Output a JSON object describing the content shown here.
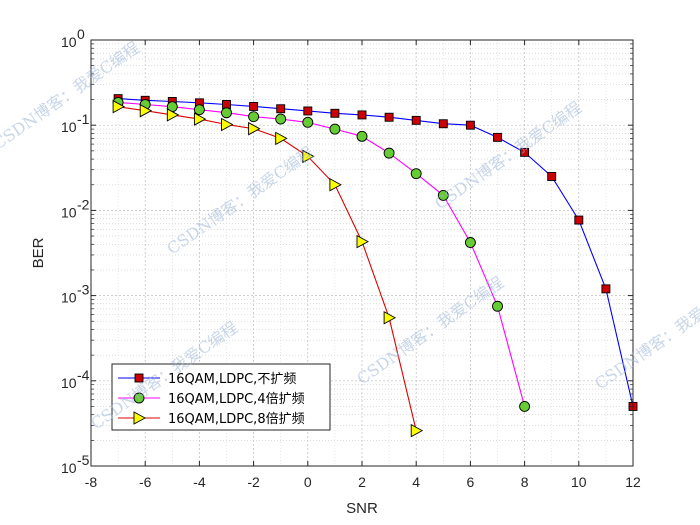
{
  "chart_data": {
    "type": "line",
    "xlabel": "SNR",
    "ylabel": "BER",
    "xlim": [
      -8,
      12
    ],
    "ylim": [
      1e-05,
      1
    ],
    "yscale": "log",
    "grid": true,
    "minor_grid": true,
    "legend_position": "bottom-left",
    "x_ticks": [
      "-8",
      "-6",
      "-4",
      "-2",
      "0",
      "2",
      "4",
      "6",
      "8",
      "10",
      "12"
    ],
    "y_ticks": [
      {
        "base": "10",
        "exp": "0"
      },
      {
        "base": "10",
        "exp": "-1"
      },
      {
        "base": "10",
        "exp": "-2"
      },
      {
        "base": "10",
        "exp": "-3"
      },
      {
        "base": "10",
        "exp": "-4"
      },
      {
        "base": "10",
        "exp": "-5"
      }
    ],
    "series": [
      {
        "name": "16QAM,LDPC,不扩频",
        "marker": "square",
        "line_color": "#0000ff",
        "marker_face": "#cc0000",
        "marker_edge": "#000000",
        "x": [
          -7,
          -6,
          -5,
          -4,
          -3,
          -2,
          -1,
          0,
          1,
          2,
          3,
          4,
          5,
          6,
          7,
          8,
          9,
          10,
          11,
          12
        ],
        "y": [
          0.205,
          0.196,
          0.19,
          0.183,
          0.175,
          0.166,
          0.156,
          0.147,
          0.138,
          0.132,
          0.124,
          0.114,
          0.104,
          0.1,
          0.072,
          0.048,
          0.025,
          0.0077,
          0.0012,
          5e-05
        ]
      },
      {
        "name": "16QAM,LDPC,4倍扩频",
        "marker": "circle",
        "line_color": "#ff00ff",
        "marker_face": "#66cc33",
        "marker_edge": "#000000",
        "x": [
          -7,
          -6,
          -5,
          -4,
          -3,
          -2,
          -1,
          0,
          1,
          2,
          3,
          4,
          5,
          6,
          7,
          8
        ],
        "y": [
          0.185,
          0.175,
          0.165,
          0.152,
          0.14,
          0.126,
          0.118,
          0.108,
          0.09,
          0.074,
          0.047,
          0.027,
          0.015,
          0.0042,
          0.00075,
          5e-05
        ]
      },
      {
        "name": "16QAM,LDPC,8倍扩频",
        "marker": "triangle-right",
        "line_color": "#dd0000",
        "marker_face": "#ffff00",
        "marker_edge": "#000000",
        "x": [
          -7,
          -6,
          -5,
          -4,
          -3,
          -2,
          -1,
          0,
          1,
          2,
          3,
          4
        ],
        "y": [
          0.165,
          0.148,
          0.132,
          0.118,
          0.102,
          0.091,
          0.07,
          0.043,
          0.02,
          0.0043,
          0.00055,
          2.6e-05
        ]
      }
    ]
  },
  "watermark": {
    "text": "CSDN博客：我爱C编程"
  }
}
